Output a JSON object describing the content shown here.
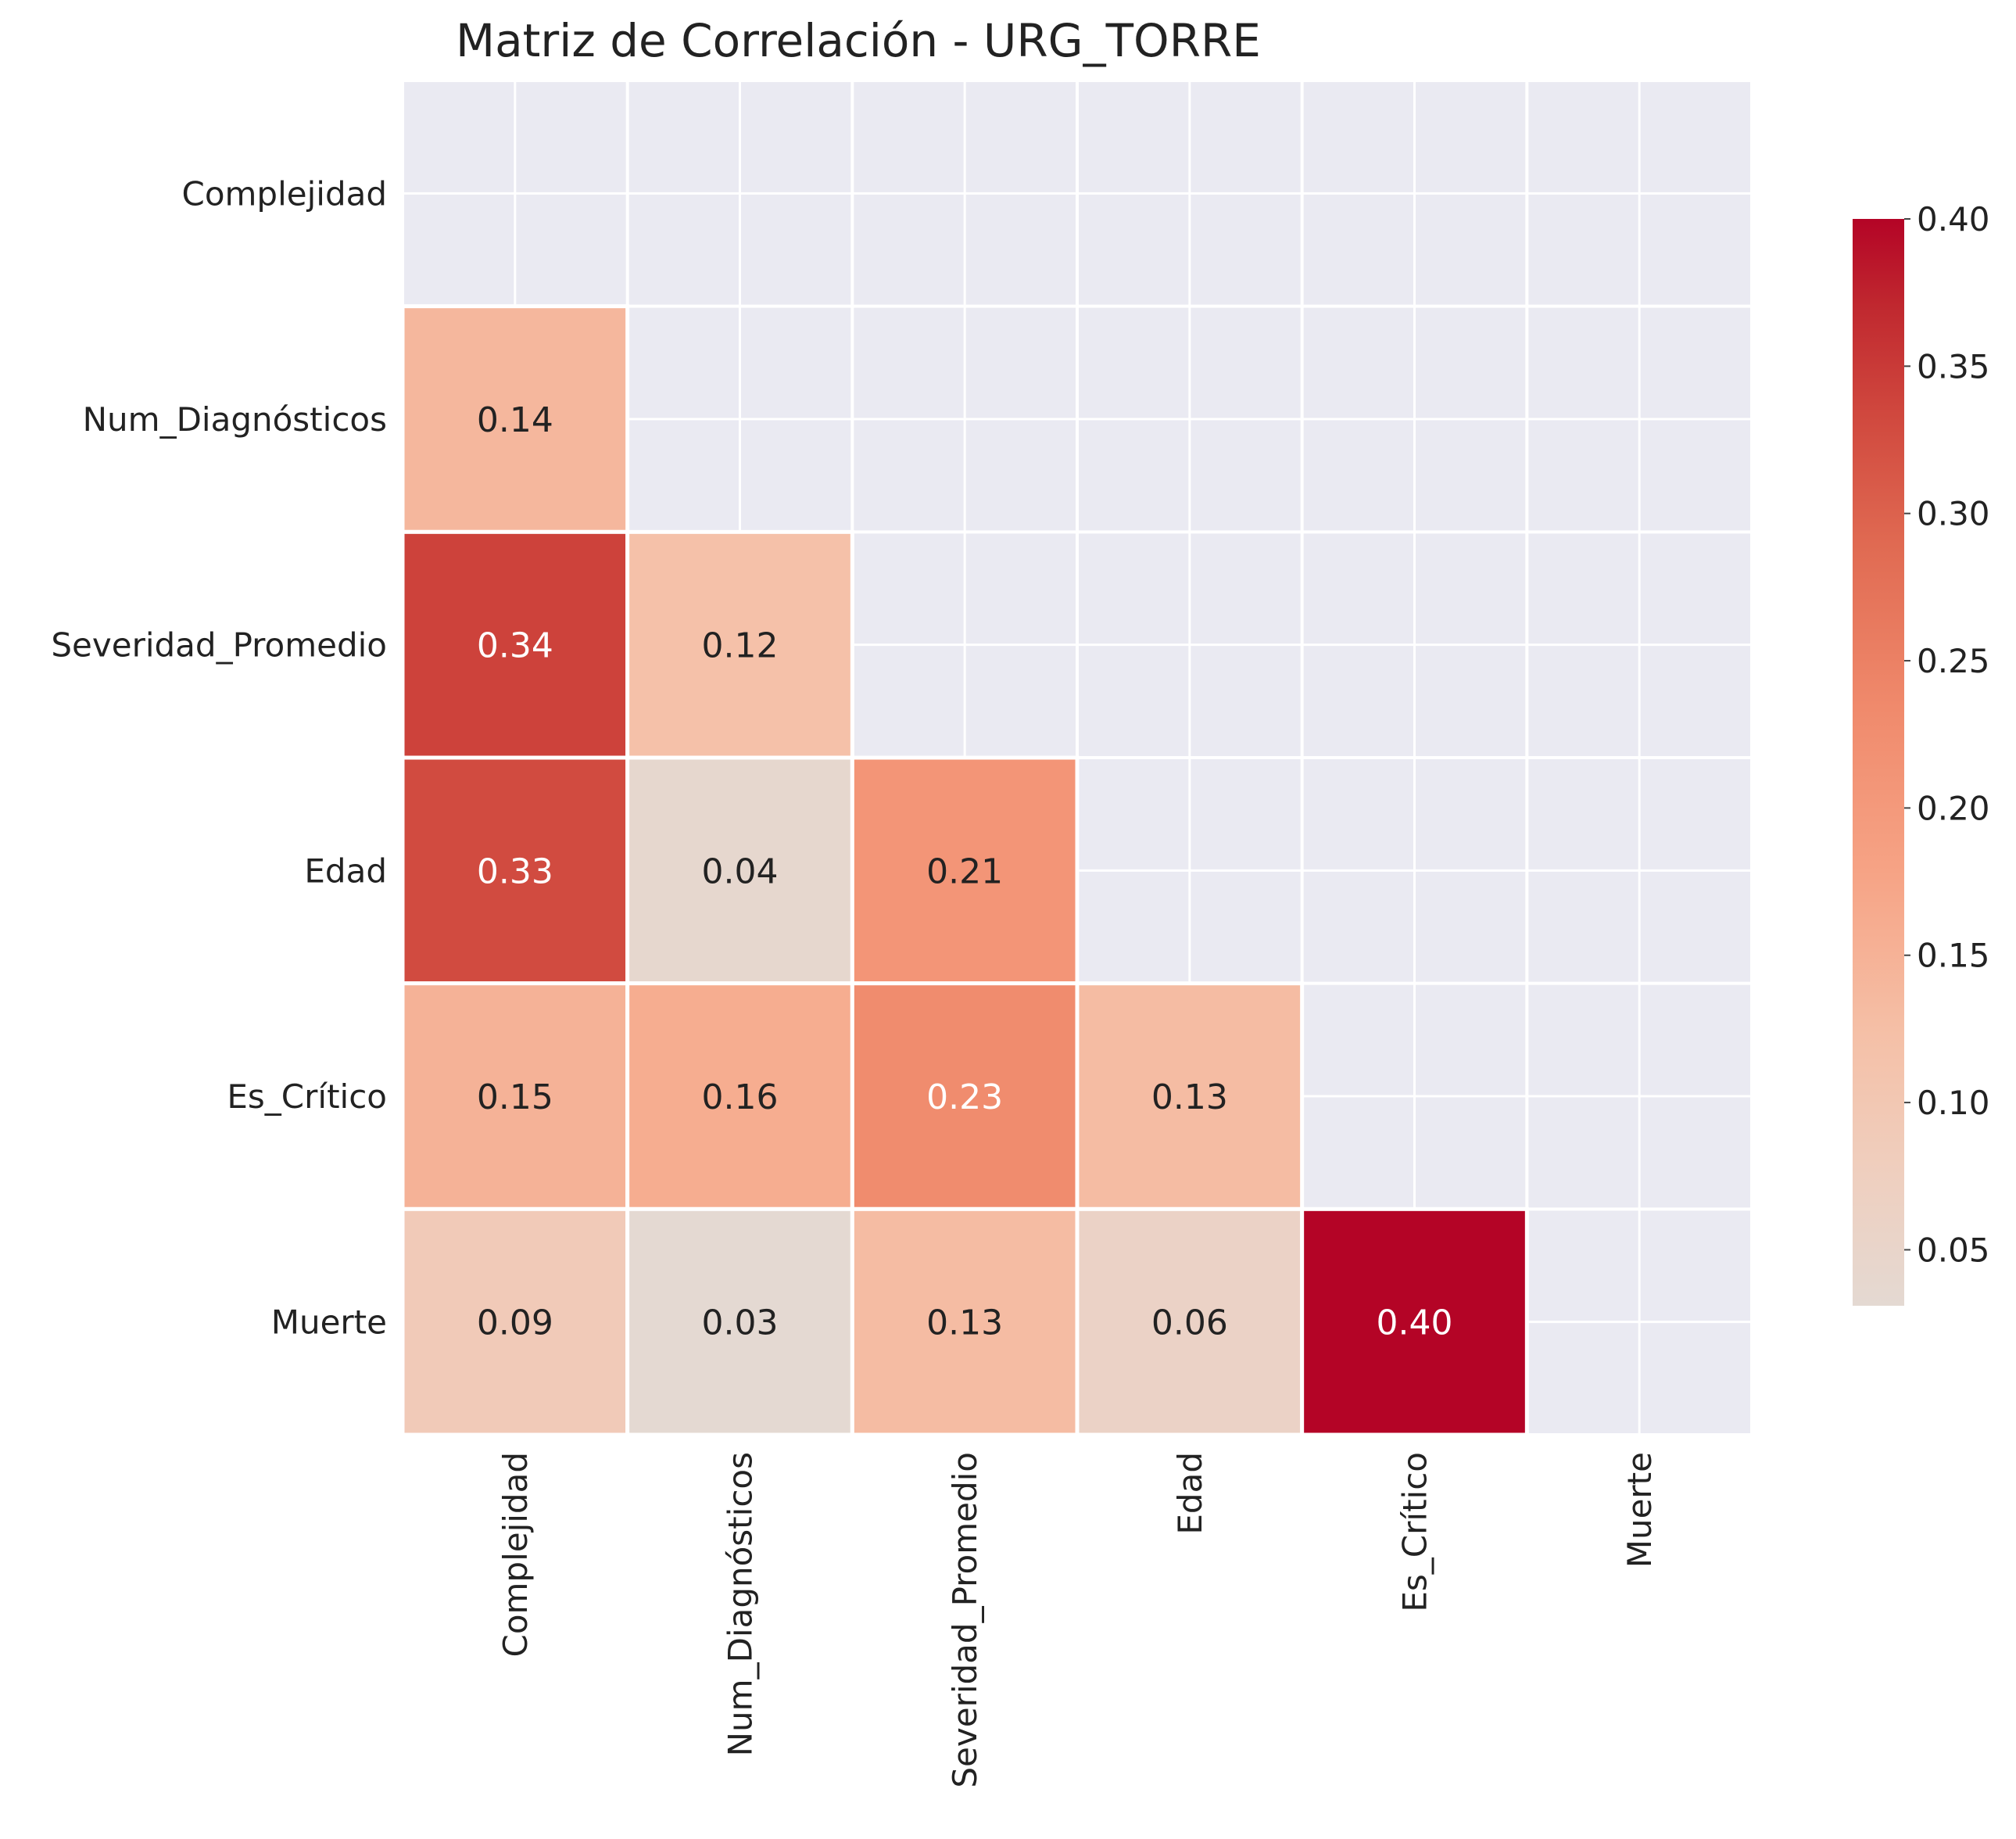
{
  "chart_data": {
    "type": "heatmap",
    "title": "Matriz de Correlación - URG_TORRE",
    "xlabel": "",
    "ylabel": "",
    "rows": [
      "Complejidad",
      "Num_Diagnósticos",
      "Severidad_Promedio",
      "Edad",
      "Es_Crítico",
      "Muerte"
    ],
    "columns": [
      "Complejidad",
      "Num_Diagnósticos",
      "Severidad_Promedio",
      "Edad",
      "Es_Crítico",
      "Muerte"
    ],
    "mask": "upper-triangle-including-diagonal",
    "cells": [
      {
        "row": "Num_Diagnósticos",
        "col": "Complejidad",
        "value": 0.14,
        "label": "0.14"
      },
      {
        "row": "Severidad_Promedio",
        "col": "Complejidad",
        "value": 0.34,
        "label": "0.34"
      },
      {
        "row": "Severidad_Promedio",
        "col": "Num_Diagnósticos",
        "value": 0.12,
        "label": "0.12"
      },
      {
        "row": "Edad",
        "col": "Complejidad",
        "value": 0.33,
        "label": "0.33"
      },
      {
        "row": "Edad",
        "col": "Num_Diagnósticos",
        "value": 0.04,
        "label": "0.04"
      },
      {
        "row": "Edad",
        "col": "Severidad_Promedio",
        "value": 0.21,
        "label": "0.21"
      },
      {
        "row": "Es_Crítico",
        "col": "Complejidad",
        "value": 0.15,
        "label": "0.15"
      },
      {
        "row": "Es_Crítico",
        "col": "Num_Diagnósticos",
        "value": 0.16,
        "label": "0.16"
      },
      {
        "row": "Es_Crítico",
        "col": "Severidad_Promedio",
        "value": 0.23,
        "label": "0.23"
      },
      {
        "row": "Es_Crítico",
        "col": "Edad",
        "value": 0.13,
        "label": "0.13"
      },
      {
        "row": "Muerte",
        "col": "Complejidad",
        "value": 0.09,
        "label": "0.09"
      },
      {
        "row": "Muerte",
        "col": "Num_Diagnósticos",
        "value": 0.03,
        "label": "0.03"
      },
      {
        "row": "Muerte",
        "col": "Severidad_Promedio",
        "value": 0.13,
        "label": "0.13"
      },
      {
        "row": "Muerte",
        "col": "Edad",
        "value": 0.06,
        "label": "0.06"
      },
      {
        "row": "Muerte",
        "col": "Es_Crítico",
        "value": 0.4,
        "label": "0.40"
      }
    ],
    "colorbar": {
      "min": 0.031,
      "max": 0.4,
      "ticks": [
        0.05,
        0.1,
        0.15,
        0.2,
        0.25,
        0.3,
        0.35,
        0.4
      ],
      "tick_labels": [
        "0.05",
        "0.10",
        "0.15",
        "0.20",
        "0.25",
        "0.30",
        "0.35",
        "0.40"
      ],
      "colormap": "coolwarm (upper half)",
      "stops": [
        {
          "v": 0.0,
          "color": "#e4d9d2"
        },
        {
          "v": 0.12,
          "color": "#efcfbf"
        },
        {
          "v": 0.25,
          "color": "#f5c0a7"
        },
        {
          "v": 0.4,
          "color": "#f6a385"
        },
        {
          "v": 0.55,
          "color": "#f08a6c"
        },
        {
          "v": 0.7,
          "color": "#e06a52"
        },
        {
          "v": 0.82,
          "color": "#d0483e"
        },
        {
          "v": 0.92,
          "color": "#c0282f"
        },
        {
          "v": 1.0,
          "color": "#b40426"
        }
      ]
    },
    "grid": true,
    "legend": "colorbar-right",
    "colors": {
      "background": "#eaeaf2",
      "grid": "#ffffff",
      "text_dark": "#222222",
      "text_light": "#ffffff"
    }
  }
}
